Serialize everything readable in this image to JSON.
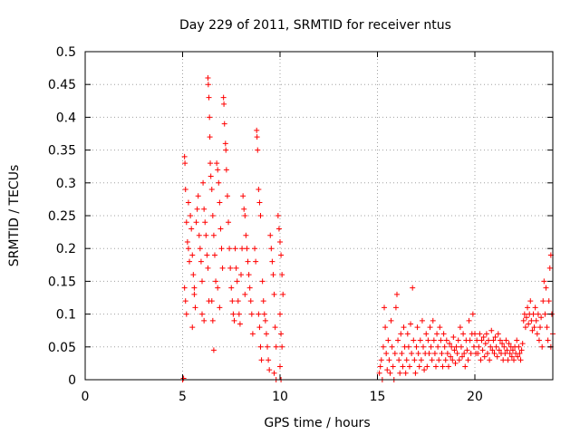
{
  "chart_data": {
    "type": "scatter",
    "title": "Day 229 of 2011, SRMTID for receiver ntus",
    "xlabel": "GPS time / hours",
    "ylabel": "SRMTID / TECUs",
    "xlim": [
      0,
      24
    ],
    "ylim": [
      0,
      0.5
    ],
    "x_ticks": [
      0,
      5,
      10,
      15,
      20
    ],
    "y_ticks": [
      0,
      0.05,
      0.1,
      0.15,
      0.2,
      0.25,
      0.3,
      0.35,
      0.4,
      0.45,
      0.5
    ],
    "x_tick_labels": [
      "0",
      "5",
      "10",
      "15",
      "20"
    ],
    "y_tick_labels": [
      "0",
      "0.05",
      "0.1",
      "0.15",
      "0.2",
      "0.25",
      "0.3",
      "0.35",
      "0.4",
      "0.45",
      "0.5"
    ],
    "grid": true,
    "marker": "+",
    "marker_color": "#ff0000",
    "series": [
      {
        "name": "SRMTID",
        "points": [
          [
            5.0,
            0.0
          ],
          [
            5.05,
            0.002
          ],
          [
            5.1,
            0.34
          ],
          [
            5.12,
            0.33
          ],
          [
            5.15,
            0.29
          ],
          [
            5.2,
            0.24
          ],
          [
            5.25,
            0.21
          ],
          [
            5.3,
            0.2
          ],
          [
            5.35,
            0.18
          ],
          [
            5.1,
            0.14
          ],
          [
            5.15,
            0.12
          ],
          [
            5.2,
            0.1
          ],
          [
            5.3,
            0.27
          ],
          [
            5.4,
            0.25
          ],
          [
            5.45,
            0.23
          ],
          [
            5.5,
            0.19
          ],
          [
            5.55,
            0.16
          ],
          [
            5.6,
            0.13
          ],
          [
            5.65,
            0.11
          ],
          [
            5.7,
            0.24
          ],
          [
            5.75,
            0.26
          ],
          [
            5.8,
            0.28
          ],
          [
            5.85,
            0.22
          ],
          [
            5.9,
            0.2
          ],
          [
            5.95,
            0.18
          ],
          [
            6.0,
            0.15
          ],
          [
            5.5,
            0.08
          ],
          [
            5.6,
            0.14
          ],
          [
            6.05,
            0.3
          ],
          [
            6.1,
            0.26
          ],
          [
            6.15,
            0.24
          ],
          [
            6.2,
            0.22
          ],
          [
            6.25,
            0.19
          ],
          [
            6.3,
            0.17
          ],
          [
            6.35,
            0.12
          ],
          [
            6.0,
            0.1
          ],
          [
            6.1,
            0.09
          ],
          [
            6.3,
            0.46
          ],
          [
            6.32,
            0.45
          ],
          [
            6.35,
            0.43
          ],
          [
            6.38,
            0.4
          ],
          [
            6.4,
            0.37
          ],
          [
            6.42,
            0.33
          ],
          [
            6.45,
            0.31
          ],
          [
            6.5,
            0.29
          ],
          [
            6.55,
            0.25
          ],
          [
            6.6,
            0.22
          ],
          [
            6.65,
            0.19
          ],
          [
            6.7,
            0.15
          ],
          [
            6.5,
            0.12
          ],
          [
            6.55,
            0.09
          ],
          [
            6.6,
            0.045
          ],
          [
            6.75,
            0.33
          ],
          [
            6.8,
            0.32
          ],
          [
            6.85,
            0.3
          ],
          [
            6.9,
            0.27
          ],
          [
            6.95,
            0.23
          ],
          [
            7.0,
            0.2
          ],
          [
            7.05,
            0.17
          ],
          [
            6.8,
            0.14
          ],
          [
            6.9,
            0.11
          ],
          [
            7.1,
            0.43
          ],
          [
            7.12,
            0.42
          ],
          [
            7.15,
            0.39
          ],
          [
            7.2,
            0.36
          ],
          [
            7.22,
            0.35
          ],
          [
            7.25,
            0.32
          ],
          [
            7.3,
            0.28
          ],
          [
            7.35,
            0.24
          ],
          [
            7.4,
            0.2
          ],
          [
            7.45,
            0.17
          ],
          [
            7.5,
            0.14
          ],
          [
            7.55,
            0.12
          ],
          [
            7.6,
            0.1
          ],
          [
            7.65,
            0.09
          ],
          [
            7.7,
            0.2
          ],
          [
            7.75,
            0.17
          ],
          [
            7.8,
            0.15
          ],
          [
            7.85,
            0.12
          ],
          [
            7.9,
            0.1
          ],
          [
            7.95,
            0.085
          ],
          [
            8.0,
            0.16
          ],
          [
            8.05,
            0.2
          ],
          [
            8.1,
            0.28
          ],
          [
            8.15,
            0.26
          ],
          [
            8.2,
            0.25
          ],
          [
            8.25,
            0.22
          ],
          [
            8.3,
            0.2
          ],
          [
            8.35,
            0.18
          ],
          [
            8.4,
            0.16
          ],
          [
            8.45,
            0.14
          ],
          [
            8.5,
            0.12
          ],
          [
            8.55,
            0.1
          ],
          [
            8.6,
            0.07
          ],
          [
            8.2,
            0.13
          ],
          [
            8.7,
            0.2
          ],
          [
            8.75,
            0.18
          ],
          [
            8.8,
            0.38
          ],
          [
            8.82,
            0.37
          ],
          [
            8.85,
            0.35
          ],
          [
            8.9,
            0.29
          ],
          [
            8.95,
            0.27
          ],
          [
            9.0,
            0.25
          ],
          [
            8.9,
            0.1
          ],
          [
            8.95,
            0.08
          ],
          [
            9.0,
            0.05
          ],
          [
            9.05,
            0.03
          ],
          [
            9.1,
            0.15
          ],
          [
            9.15,
            0.12
          ],
          [
            9.2,
            0.1
          ],
          [
            9.25,
            0.09
          ],
          [
            9.3,
            0.07
          ],
          [
            9.35,
            0.05
          ],
          [
            9.4,
            0.03
          ],
          [
            9.45,
            0.015
          ],
          [
            9.5,
            0.22
          ],
          [
            9.55,
            0.2
          ],
          [
            9.6,
            0.18
          ],
          [
            9.65,
            0.16
          ],
          [
            9.7,
            0.13
          ],
          [
            9.75,
            0.08
          ],
          [
            9.8,
            0.05
          ],
          [
            9.7,
            0.01
          ],
          [
            9.8,
            0.0
          ],
          [
            9.9,
            0.25
          ],
          [
            9.95,
            0.23
          ],
          [
            10.0,
            0.21
          ],
          [
            10.05,
            0.19
          ],
          [
            10.1,
            0.16
          ],
          [
            10.15,
            0.13
          ],
          [
            10.0,
            0.1
          ],
          [
            10.05,
            0.07
          ],
          [
            10.1,
            0.05
          ],
          [
            10.0,
            0.02
          ],
          [
            10.05,
            0.0
          ],
          [
            15.1,
            0.01
          ],
          [
            15.15,
            0.02
          ],
          [
            15.2,
            0.03
          ],
          [
            15.25,
            0.0
          ],
          [
            15.3,
            0.05
          ],
          [
            15.35,
            0.11
          ],
          [
            15.4,
            0.08
          ],
          [
            15.45,
            0.04
          ],
          [
            15.5,
            0.015
          ],
          [
            15.55,
            0.06
          ],
          [
            15.6,
            0.03
          ],
          [
            15.65,
            0.01
          ],
          [
            15.7,
            0.09
          ],
          [
            15.75,
            0.05
          ],
          [
            15.8,
            0.02
          ],
          [
            15.85,
            0.0
          ],
          [
            15.9,
            0.04
          ],
          [
            15.95,
            0.11
          ],
          [
            16.0,
            0.13
          ],
          [
            16.05,
            0.06
          ],
          [
            16.1,
            0.03
          ],
          [
            16.15,
            0.01
          ],
          [
            16.2,
            0.07
          ],
          [
            16.25,
            0.04
          ],
          [
            16.3,
            0.02
          ],
          [
            16.35,
            0.08
          ],
          [
            16.4,
            0.05
          ],
          [
            16.45,
            0.01
          ],
          [
            16.5,
            0.03
          ],
          [
            16.55,
            0.07
          ],
          [
            16.6,
            0.05
          ],
          [
            16.65,
            0.02
          ],
          [
            16.7,
            0.085
          ],
          [
            16.75,
            0.04
          ],
          [
            16.8,
            0.14
          ],
          [
            16.85,
            0.06
          ],
          [
            16.9,
            0.03
          ],
          [
            16.95,
            0.01
          ],
          [
            17.0,
            0.05
          ],
          [
            17.05,
            0.08
          ],
          [
            17.1,
            0.04
          ],
          [
            17.15,
            0.02
          ],
          [
            17.2,
            0.06
          ],
          [
            17.25,
            0.03
          ],
          [
            17.3,
            0.09
          ],
          [
            17.35,
            0.05
          ],
          [
            17.4,
            0.015
          ],
          [
            17.45,
            0.04
          ],
          [
            17.5,
            0.07
          ],
          [
            17.55,
            0.02
          ],
          [
            17.6,
            0.06
          ],
          [
            17.65,
            0.04
          ],
          [
            17.7,
            0.08
          ],
          [
            17.75,
            0.05
          ],
          [
            17.8,
            0.03
          ],
          [
            17.85,
            0.09
          ],
          [
            17.9,
            0.06
          ],
          [
            17.95,
            0.04
          ],
          [
            18.0,
            0.02
          ],
          [
            18.05,
            0.07
          ],
          [
            18.1,
            0.05
          ],
          [
            18.15,
            0.03
          ],
          [
            18.2,
            0.08
          ],
          [
            18.25,
            0.06
          ],
          [
            18.3,
            0.04
          ],
          [
            18.35,
            0.02
          ],
          [
            18.4,
            0.07
          ],
          [
            18.45,
            0.05
          ],
          [
            18.5,
            0.03
          ],
          [
            18.55,
            0.06
          ],
          [
            18.6,
            0.04
          ],
          [
            18.65,
            0.02
          ],
          [
            18.7,
            0.055
          ],
          [
            18.75,
            0.035
          ],
          [
            18.8,
            0.05
          ],
          [
            18.85,
            0.03
          ],
          [
            18.9,
            0.065
          ],
          [
            18.95,
            0.045
          ],
          [
            19.0,
            0.025
          ],
          [
            19.05,
            0.05
          ],
          [
            19.1,
            0.04
          ],
          [
            19.15,
            0.06
          ],
          [
            19.2,
            0.03
          ],
          [
            19.25,
            0.08
          ],
          [
            19.3,
            0.05
          ],
          [
            19.35,
            0.035
          ],
          [
            19.4,
            0.07
          ],
          [
            19.45,
            0.04
          ],
          [
            19.5,
            0.02
          ],
          [
            19.55,
            0.06
          ],
          [
            19.6,
            0.045
          ],
          [
            19.65,
            0.03
          ],
          [
            19.7,
            0.09
          ],
          [
            19.75,
            0.06
          ],
          [
            19.8,
            0.04
          ],
          [
            19.85,
            0.07
          ],
          [
            19.9,
            0.1
          ],
          [
            19.95,
            0.05
          ],
          [
            20.0,
            0.07
          ],
          [
            20.05,
            0.04
          ],
          [
            20.1,
            0.06
          ],
          [
            20.15,
            0.04
          ],
          [
            20.2,
            0.05
          ],
          [
            20.25,
            0.07
          ],
          [
            20.3,
            0.03
          ],
          [
            20.35,
            0.06
          ],
          [
            20.4,
            0.045
          ],
          [
            20.45,
            0.065
          ],
          [
            20.5,
            0.035
          ],
          [
            20.55,
            0.055
          ],
          [
            20.6,
            0.07
          ],
          [
            20.65,
            0.04
          ],
          [
            20.7,
            0.06
          ],
          [
            20.75,
            0.03
          ],
          [
            20.8,
            0.05
          ],
          [
            20.85,
            0.075
          ],
          [
            20.9,
            0.045
          ],
          [
            20.95,
            0.06
          ],
          [
            21.0,
            0.04
          ],
          [
            21.05,
            0.065
          ],
          [
            21.1,
            0.05
          ],
          [
            21.15,
            0.035
          ],
          [
            21.2,
            0.07
          ],
          [
            21.25,
            0.045
          ],
          [
            21.3,
            0.06
          ],
          [
            21.35,
            0.04
          ],
          [
            21.4,
            0.055
          ],
          [
            21.45,
            0.03
          ],
          [
            21.5,
            0.05
          ],
          [
            21.55,
            0.04
          ],
          [
            21.6,
            0.06
          ],
          [
            21.65,
            0.045
          ],
          [
            21.7,
            0.03
          ],
          [
            21.75,
            0.055
          ],
          [
            21.8,
            0.04
          ],
          [
            21.85,
            0.05
          ],
          [
            21.9,
            0.035
          ],
          [
            21.95,
            0.045
          ],
          [
            22.0,
            0.03
          ],
          [
            22.05,
            0.05
          ],
          [
            22.1,
            0.04
          ],
          [
            22.15,
            0.06
          ],
          [
            22.2,
            0.035
          ],
          [
            22.25,
            0.05
          ],
          [
            22.3,
            0.04
          ],
          [
            22.35,
            0.03
          ],
          [
            22.4,
            0.045
          ],
          [
            22.45,
            0.055
          ],
          [
            22.5,
            0.09
          ],
          [
            22.55,
            0.1
          ],
          [
            22.6,
            0.08
          ],
          [
            22.65,
            0.095
          ],
          [
            22.7,
            0.11
          ],
          [
            22.75,
            0.085
          ],
          [
            22.8,
            0.1
          ],
          [
            22.85,
            0.12
          ],
          [
            22.9,
            0.09
          ],
          [
            22.95,
            0.075
          ],
          [
            23.0,
            0.1
          ],
          [
            23.05,
            0.08
          ],
          [
            23.1,
            0.11
          ],
          [
            23.15,
            0.09
          ],
          [
            23.2,
            0.07
          ],
          [
            23.25,
            0.1
          ],
          [
            23.3,
            0.06
          ],
          [
            23.35,
            0.08
          ],
          [
            23.4,
            0.095
          ],
          [
            23.45,
            0.05
          ],
          [
            23.5,
            0.12
          ],
          [
            23.55,
            0.15
          ],
          [
            23.6,
            0.1
          ],
          [
            23.65,
            0.14
          ],
          [
            23.7,
            0.08
          ],
          [
            23.75,
            0.06
          ],
          [
            23.8,
            0.12
          ],
          [
            23.85,
            0.17
          ],
          [
            23.9,
            0.19
          ],
          [
            23.95,
            0.1
          ],
          [
            24.0,
            0.07
          ],
          [
            23.9,
            0.05
          ]
        ]
      }
    ]
  }
}
